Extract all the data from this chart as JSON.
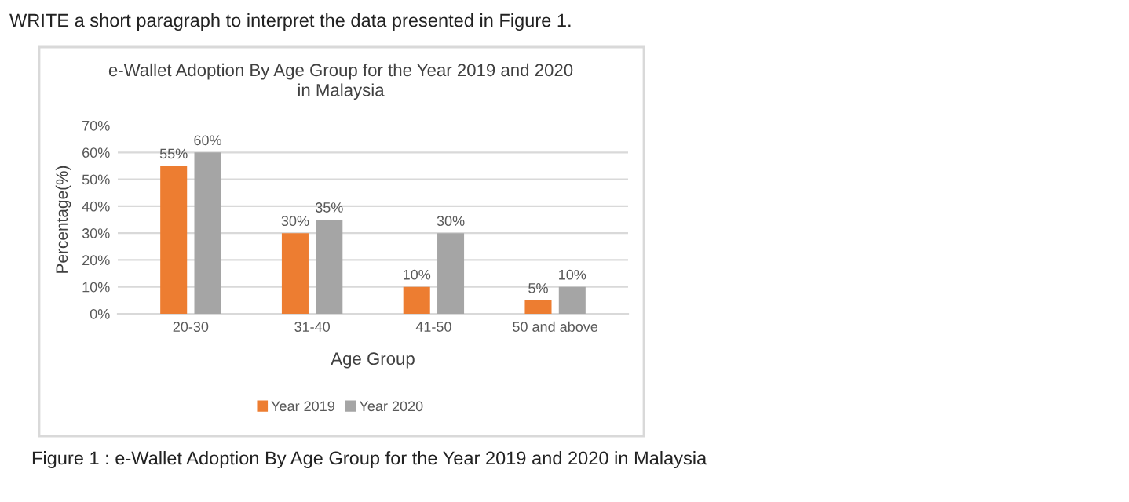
{
  "chart_data": {
    "type": "bar",
    "title": "e-Wallet Adoption By Age Group for the Year 2019 and 2020\nin Malaysia",
    "xlabel": "Age Group",
    "ylabel": "Percentage(%)",
    "categories": [
      "20-30",
      "31-40",
      "41-50",
      "50 and above"
    ],
    "series": [
      {
        "name": "Year 2019",
        "color": "#ed7d31",
        "values": [
          55,
          30,
          10,
          5
        ],
        "value_labels": [
          "55%",
          "30%",
          "10%",
          "5%"
        ]
      },
      {
        "name": "Year 2020",
        "color": "#a5a5a5",
        "values": [
          60,
          35,
          30,
          10
        ],
        "value_labels": [
          "60%",
          "35%",
          "30%",
          "10%"
        ]
      }
    ],
    "ylim": [
      0,
      70
    ],
    "yticks": [
      {
        "value": 0,
        "label": "0%"
      },
      {
        "value": 10,
        "label": "10%"
      },
      {
        "value": 20,
        "label": "20%"
      },
      {
        "value": 30,
        "label": "30%"
      },
      {
        "value": 40,
        "label": "40%"
      },
      {
        "value": 50,
        "label": "50%"
      },
      {
        "value": 60,
        "label": "60%"
      },
      {
        "value": 70,
        "label": "70%"
      }
    ],
    "grid": "y",
    "legend": "bottom",
    "annotations": [
      "WRITE a short paragraph to interpret the data presented in Figure 1.",
      "Figure 1 : e-Wallet Adoption By Age Group for the Year 2019 and 2020 in Malaysia"
    ]
  }
}
